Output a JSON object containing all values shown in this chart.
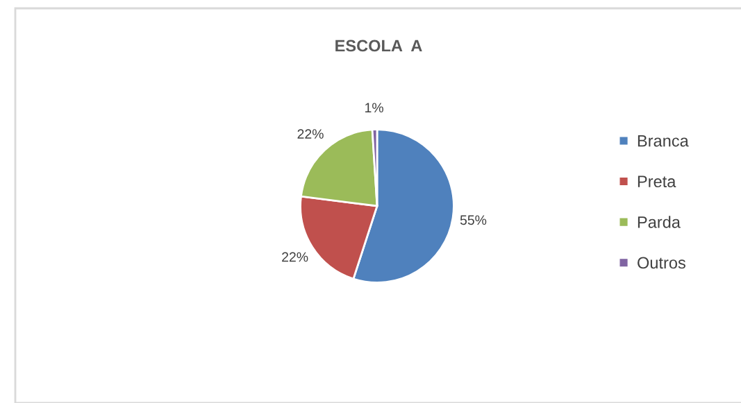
{
  "chart_data": {
    "type": "pie",
    "title": "ESCOLA  A",
    "categories": [
      "Branca",
      "Preta",
      "Parda",
      "Outros"
    ],
    "values": [
      55,
      22,
      22,
      1
    ],
    "colors": [
      "#4f81bd",
      "#c0504d",
      "#9bbb59",
      "#8064a2"
    ],
    "value_labels": [
      "55%",
      "22%",
      "22%",
      "1%"
    ],
    "legend": "right"
  }
}
